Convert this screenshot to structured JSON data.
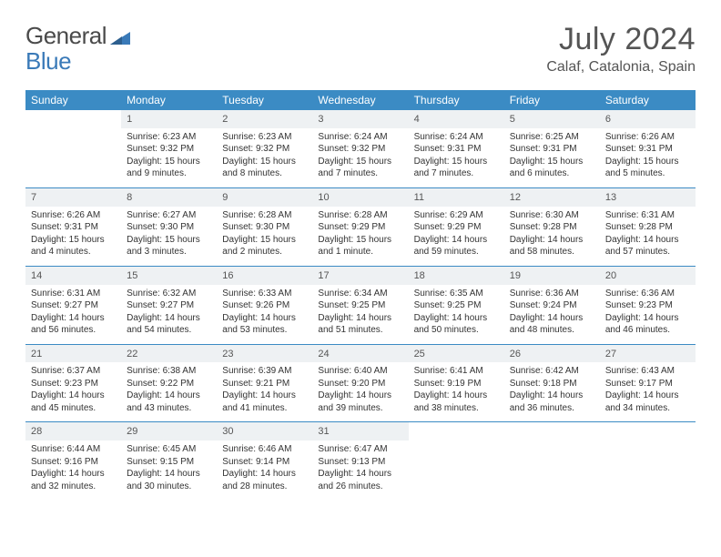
{
  "logo": {
    "text1": "General",
    "text2": "Blue"
  },
  "title": "July 2024",
  "location": "Calaf, Catalonia, Spain",
  "colors": {
    "header_bg": "#3b8bc4",
    "header_text": "#ffffff",
    "daynum_bg": "#eef1f3",
    "border": "#3b8bc4",
    "logo_blue": "#3a7ab8",
    "text": "#333333"
  },
  "typography": {
    "title_fontsize": 34,
    "location_fontsize": 16,
    "header_fontsize": 12,
    "cell_fontsize": 10
  },
  "weekdays": [
    "Sunday",
    "Monday",
    "Tuesday",
    "Wednesday",
    "Thursday",
    "Friday",
    "Saturday"
  ],
  "weeks": [
    {
      "nums": [
        "",
        "1",
        "2",
        "3",
        "4",
        "5",
        "6"
      ],
      "cells": [
        {
          "empty": true
        },
        {
          "sunrise": "Sunrise: 6:23 AM",
          "sunset": "Sunset: 9:32 PM",
          "day1": "Daylight: 15 hours",
          "day2": "and 9 minutes."
        },
        {
          "sunrise": "Sunrise: 6:23 AM",
          "sunset": "Sunset: 9:32 PM",
          "day1": "Daylight: 15 hours",
          "day2": "and 8 minutes."
        },
        {
          "sunrise": "Sunrise: 6:24 AM",
          "sunset": "Sunset: 9:32 PM",
          "day1": "Daylight: 15 hours",
          "day2": "and 7 minutes."
        },
        {
          "sunrise": "Sunrise: 6:24 AM",
          "sunset": "Sunset: 9:31 PM",
          "day1": "Daylight: 15 hours",
          "day2": "and 7 minutes."
        },
        {
          "sunrise": "Sunrise: 6:25 AM",
          "sunset": "Sunset: 9:31 PM",
          "day1": "Daylight: 15 hours",
          "day2": "and 6 minutes."
        },
        {
          "sunrise": "Sunrise: 6:26 AM",
          "sunset": "Sunset: 9:31 PM",
          "day1": "Daylight: 15 hours",
          "day2": "and 5 minutes."
        }
      ]
    },
    {
      "nums": [
        "7",
        "8",
        "9",
        "10",
        "11",
        "12",
        "13"
      ],
      "cells": [
        {
          "sunrise": "Sunrise: 6:26 AM",
          "sunset": "Sunset: 9:31 PM",
          "day1": "Daylight: 15 hours",
          "day2": "and 4 minutes."
        },
        {
          "sunrise": "Sunrise: 6:27 AM",
          "sunset": "Sunset: 9:30 PM",
          "day1": "Daylight: 15 hours",
          "day2": "and 3 minutes."
        },
        {
          "sunrise": "Sunrise: 6:28 AM",
          "sunset": "Sunset: 9:30 PM",
          "day1": "Daylight: 15 hours",
          "day2": "and 2 minutes."
        },
        {
          "sunrise": "Sunrise: 6:28 AM",
          "sunset": "Sunset: 9:29 PM",
          "day1": "Daylight: 15 hours",
          "day2": "and 1 minute."
        },
        {
          "sunrise": "Sunrise: 6:29 AM",
          "sunset": "Sunset: 9:29 PM",
          "day1": "Daylight: 14 hours",
          "day2": "and 59 minutes."
        },
        {
          "sunrise": "Sunrise: 6:30 AM",
          "sunset": "Sunset: 9:28 PM",
          "day1": "Daylight: 14 hours",
          "day2": "and 58 minutes."
        },
        {
          "sunrise": "Sunrise: 6:31 AM",
          "sunset": "Sunset: 9:28 PM",
          "day1": "Daylight: 14 hours",
          "day2": "and 57 minutes."
        }
      ]
    },
    {
      "nums": [
        "14",
        "15",
        "16",
        "17",
        "18",
        "19",
        "20"
      ],
      "cells": [
        {
          "sunrise": "Sunrise: 6:31 AM",
          "sunset": "Sunset: 9:27 PM",
          "day1": "Daylight: 14 hours",
          "day2": "and 56 minutes."
        },
        {
          "sunrise": "Sunrise: 6:32 AM",
          "sunset": "Sunset: 9:27 PM",
          "day1": "Daylight: 14 hours",
          "day2": "and 54 minutes."
        },
        {
          "sunrise": "Sunrise: 6:33 AM",
          "sunset": "Sunset: 9:26 PM",
          "day1": "Daylight: 14 hours",
          "day2": "and 53 minutes."
        },
        {
          "sunrise": "Sunrise: 6:34 AM",
          "sunset": "Sunset: 9:25 PM",
          "day1": "Daylight: 14 hours",
          "day2": "and 51 minutes."
        },
        {
          "sunrise": "Sunrise: 6:35 AM",
          "sunset": "Sunset: 9:25 PM",
          "day1": "Daylight: 14 hours",
          "day2": "and 50 minutes."
        },
        {
          "sunrise": "Sunrise: 6:36 AM",
          "sunset": "Sunset: 9:24 PM",
          "day1": "Daylight: 14 hours",
          "day2": "and 48 minutes."
        },
        {
          "sunrise": "Sunrise: 6:36 AM",
          "sunset": "Sunset: 9:23 PM",
          "day1": "Daylight: 14 hours",
          "day2": "and 46 minutes."
        }
      ]
    },
    {
      "nums": [
        "21",
        "22",
        "23",
        "24",
        "25",
        "26",
        "27"
      ],
      "cells": [
        {
          "sunrise": "Sunrise: 6:37 AM",
          "sunset": "Sunset: 9:23 PM",
          "day1": "Daylight: 14 hours",
          "day2": "and 45 minutes."
        },
        {
          "sunrise": "Sunrise: 6:38 AM",
          "sunset": "Sunset: 9:22 PM",
          "day1": "Daylight: 14 hours",
          "day2": "and 43 minutes."
        },
        {
          "sunrise": "Sunrise: 6:39 AM",
          "sunset": "Sunset: 9:21 PM",
          "day1": "Daylight: 14 hours",
          "day2": "and 41 minutes."
        },
        {
          "sunrise": "Sunrise: 6:40 AM",
          "sunset": "Sunset: 9:20 PM",
          "day1": "Daylight: 14 hours",
          "day2": "and 39 minutes."
        },
        {
          "sunrise": "Sunrise: 6:41 AM",
          "sunset": "Sunset: 9:19 PM",
          "day1": "Daylight: 14 hours",
          "day2": "and 38 minutes."
        },
        {
          "sunrise": "Sunrise: 6:42 AM",
          "sunset": "Sunset: 9:18 PM",
          "day1": "Daylight: 14 hours",
          "day2": "and 36 minutes."
        },
        {
          "sunrise": "Sunrise: 6:43 AM",
          "sunset": "Sunset: 9:17 PM",
          "day1": "Daylight: 14 hours",
          "day2": "and 34 minutes."
        }
      ]
    },
    {
      "nums": [
        "28",
        "29",
        "30",
        "31",
        "",
        "",
        ""
      ],
      "cells": [
        {
          "sunrise": "Sunrise: 6:44 AM",
          "sunset": "Sunset: 9:16 PM",
          "day1": "Daylight: 14 hours",
          "day2": "and 32 minutes."
        },
        {
          "sunrise": "Sunrise: 6:45 AM",
          "sunset": "Sunset: 9:15 PM",
          "day1": "Daylight: 14 hours",
          "day2": "and 30 minutes."
        },
        {
          "sunrise": "Sunrise: 6:46 AM",
          "sunset": "Sunset: 9:14 PM",
          "day1": "Daylight: 14 hours",
          "day2": "and 28 minutes."
        },
        {
          "sunrise": "Sunrise: 6:47 AM",
          "sunset": "Sunset: 9:13 PM",
          "day1": "Daylight: 14 hours",
          "day2": "and 26 minutes."
        },
        {
          "empty": true
        },
        {
          "empty": true
        },
        {
          "empty": true
        }
      ]
    }
  ]
}
